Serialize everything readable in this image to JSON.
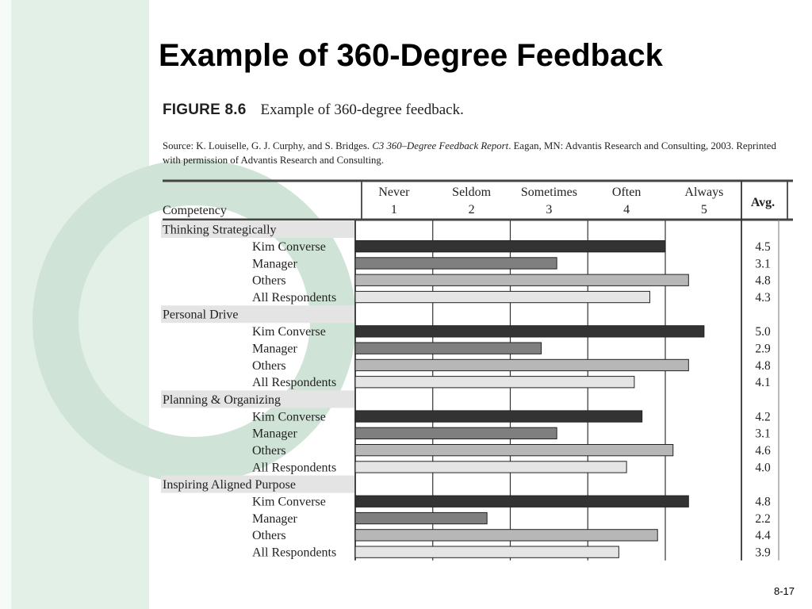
{
  "slide": {
    "title": "Example of 360-Degree Feedback",
    "page_number": "8-17"
  },
  "figure": {
    "label": "FIGURE 8.6",
    "caption": "Example of 360-degree feedback.",
    "source_pre": "Source: K. Louiselle, G. J. Curphy, and S. Bridges. ",
    "source_title": "C3 360–Degree Feedback Report",
    "source_post": ". Eagan, MN: Advantis Research and Consulting, 2003. Reprinted with permission of Advantis Research and Consulting."
  },
  "colors": {
    "background_panel": "#e3f0e7",
    "background_arc": "#cfe4d6",
    "kim_converse": "#333333",
    "manager": "#7f7f7f",
    "others": "#b7b7b7",
    "all_respondents": "#e5e5e5",
    "category_band": "#e4e4e4"
  },
  "chart_data": {
    "type": "bar",
    "orientation": "horizontal",
    "column_header": "Competency",
    "avg_header": "Avg.",
    "scale": [
      {
        "label": "Never",
        "value": 1
      },
      {
        "label": "Seldom",
        "value": 2
      },
      {
        "label": "Sometimes",
        "value": 3
      },
      {
        "label": "Often",
        "value": 4
      },
      {
        "label": "Always",
        "value": 5
      }
    ],
    "xlim": [
      0.5,
      5.0
    ],
    "grid": true,
    "groups": [
      {
        "name": "Thinking Strategically",
        "rows": [
          {
            "rater": "Kim Converse",
            "value": 4.5
          },
          {
            "rater": "Manager",
            "value": 3.1
          },
          {
            "rater": "Others",
            "value": 4.8
          },
          {
            "rater": "All Respondents",
            "value": 4.3
          }
        ]
      },
      {
        "name": "Personal Drive",
        "rows": [
          {
            "rater": "Kim Converse",
            "value": 5.0
          },
          {
            "rater": "Manager",
            "value": 2.9
          },
          {
            "rater": "Others",
            "value": 4.8
          },
          {
            "rater": "All Respondents",
            "value": 4.1
          }
        ]
      },
      {
        "name": "Planning & Organizing",
        "rows": [
          {
            "rater": "Kim Converse",
            "value": 4.2
          },
          {
            "rater": "Manager",
            "value": 3.1
          },
          {
            "rater": "Others",
            "value": 4.6
          },
          {
            "rater": "All Respondents",
            "value": 4.0
          }
        ]
      },
      {
        "name": "Inspiring Aligned Purpose",
        "rows": [
          {
            "rater": "Kim Converse",
            "value": 4.8
          },
          {
            "rater": "Manager",
            "value": 2.2
          },
          {
            "rater": "Others",
            "value": 4.4
          },
          {
            "rater": "All Respondents",
            "value": 3.9
          }
        ]
      }
    ]
  }
}
